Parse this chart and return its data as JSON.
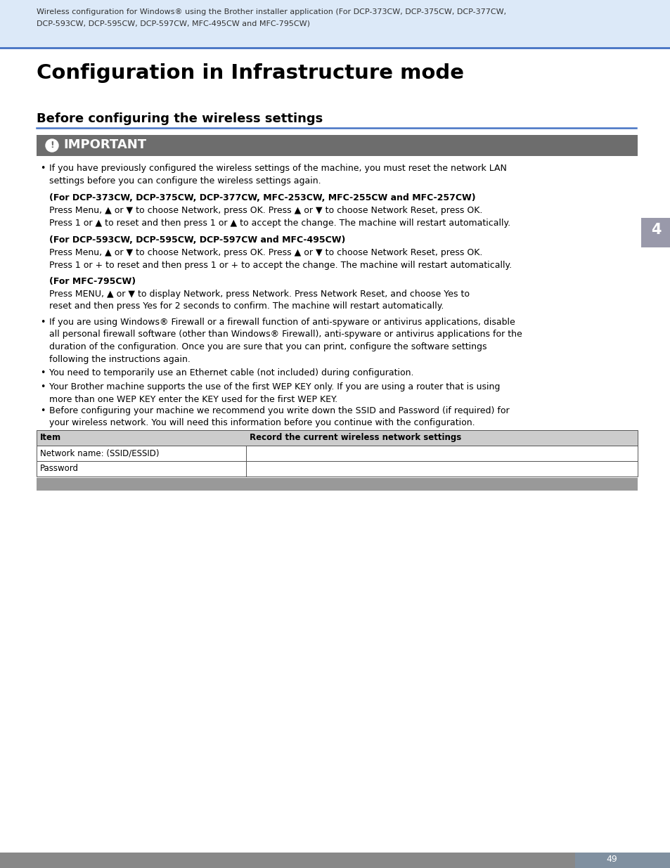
{
  "page_bg": "#ffffff",
  "header_bg": "#dce9f8",
  "header_line_color": "#4472c4",
  "important_bg": "#6d6d6d",
  "important_text_color": "#ffffff",
  "tab_bg": "#9999aa",
  "tab_text": "4",
  "footer_bg": "#888888",
  "page_number": "49",
  "header_caption_line1": "Wireless configuration for Windows® using the Brother installer application (For DCP-373CW, DCP-375CW, DCP-377CW,",
  "header_caption_line2": "DCP-593CW, DCP-595CW, DCP-597CW, MFC-495CW and MFC-795CW)",
  "main_title": "Configuration in Infrastructure mode",
  "section_title": "Before configuring the wireless settings",
  "important_title": "IMPORTANT",
  "body_text_color": "#000000",
  "table_header_bg": "#cccccc",
  "table_border_color": "#555555"
}
